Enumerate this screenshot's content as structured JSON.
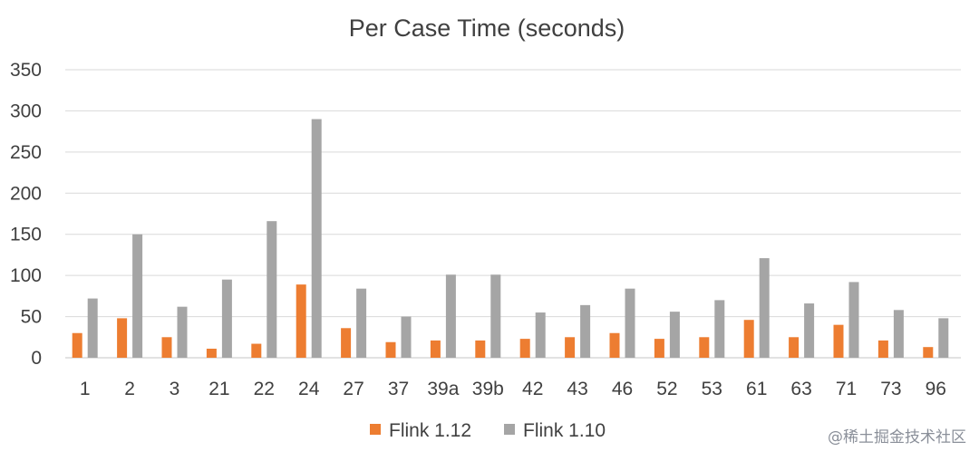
{
  "chart_data": {
    "type": "bar",
    "title": "Per Case Time (seconds)",
    "xlabel": "",
    "ylabel": "",
    "ylim": [
      0,
      350
    ],
    "yticks": [
      0,
      50,
      100,
      150,
      200,
      250,
      300,
      350
    ],
    "grid": true,
    "legend_position": "bottom",
    "categories": [
      "1",
      "2",
      "3",
      "21",
      "22",
      "24",
      "27",
      "37",
      "39a",
      "39b",
      "42",
      "43",
      "46",
      "52",
      "53",
      "61",
      "63",
      "71",
      "73",
      "96"
    ],
    "series": [
      {
        "name": "Flink 1.12",
        "color": "#ED7D31",
        "values": [
          30,
          48,
          25,
          11,
          17,
          89,
          36,
          19,
          21,
          21,
          23,
          25,
          30,
          23,
          25,
          46,
          25,
          40,
          21,
          13
        ]
      },
      {
        "name": "Flink 1.10",
        "color": "#A5A5A5",
        "values": [
          72,
          150,
          62,
          95,
          166,
          290,
          84,
          50,
          101,
          101,
          55,
          64,
          84,
          56,
          70,
          121,
          66,
          92,
          58,
          48
        ]
      }
    ]
  },
  "watermark": "@稀土掘金技术社区"
}
